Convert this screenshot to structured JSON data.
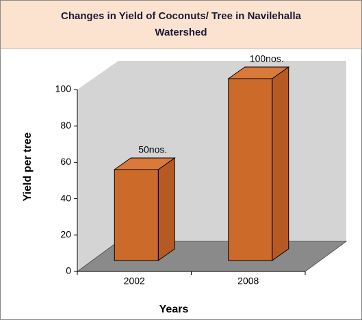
{
  "chart_data": {
    "type": "bar3d",
    "title": "Changes in Yield of Coconuts/ Tree in Navilehalla Watershed",
    "categories": [
      "2002",
      "2008"
    ],
    "values": [
      50,
      100
    ],
    "value_labels": [
      "50nos.",
      "100nos."
    ],
    "color": "#cc6a2a",
    "xlabel": "Years",
    "ylabel": "Yield per tree",
    "ylim": [
      0,
      100
    ],
    "yticks": [
      0,
      20,
      40,
      60,
      80,
      100
    ]
  }
}
